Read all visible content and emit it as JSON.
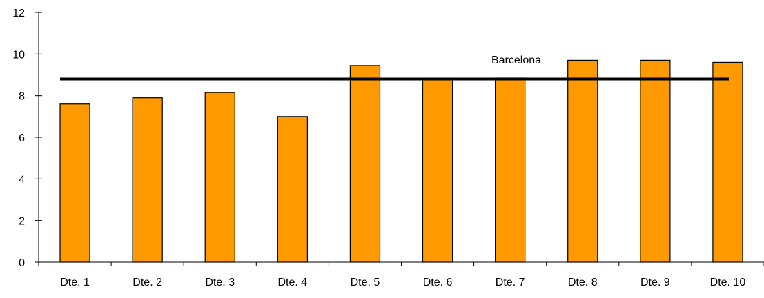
{
  "chart_data": {
    "type": "bar",
    "categories": [
      "Dte. 1",
      "Dte. 2",
      "Dte. 3",
      "Dte. 4",
      "Dte. 5",
      "Dte. 6",
      "Dte. 7",
      "Dte. 8",
      "Dte. 9",
      "Dte. 10"
    ],
    "values": [
      7.6,
      7.9,
      8.15,
      7.0,
      9.45,
      8.8,
      8.85,
      9.7,
      9.7,
      9.6
    ],
    "reference_line": {
      "label": "Barcelona",
      "value": 8.8
    },
    "ylim": [
      0,
      12
    ],
    "yticks": [
      "0",
      "2",
      "4",
      "6",
      "8",
      "10",
      "12"
    ],
    "grid": false,
    "legend": "none",
    "colors": {
      "bar_fill": "#FF9900",
      "bar_stroke": "#000000",
      "reference_line": "#000000",
      "axis": "#000000"
    }
  }
}
